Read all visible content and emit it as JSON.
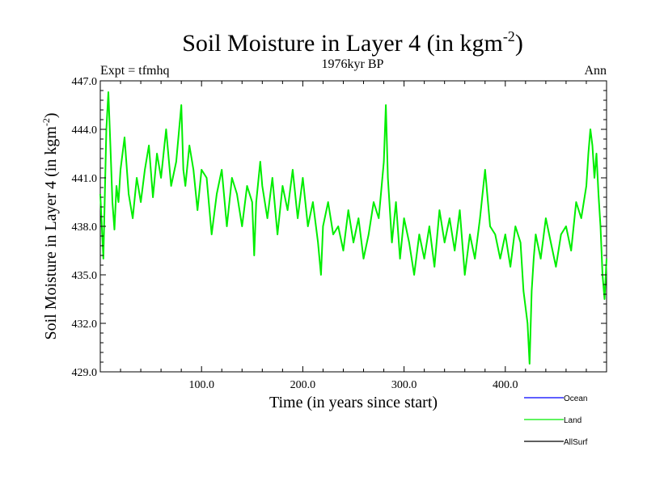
{
  "chart_data": {
    "type": "line",
    "title": "Soil Moisture in Layer 4 (in kgm",
    "title_superscript": "-2",
    "title_suffix": ")",
    "subtitle": "1976kyr BP",
    "left_label": "Expt = tfmhq",
    "right_label": "Ann",
    "xlabel": "Time (in years since start)",
    "ylabel": "Soil Moisture in Layer 4 (in kgm",
    "ylabel_superscript": "-2",
    "ylabel_suffix": ")",
    "xlim": [
      0,
      500
    ],
    "ylim": [
      429,
      447
    ],
    "x_ticks": [
      100,
      200,
      300,
      400
    ],
    "x_tick_labels": [
      "100.0",
      "200.0",
      "300.0",
      "400.0"
    ],
    "y_ticks": [
      429,
      432,
      435,
      438,
      441,
      444,
      447
    ],
    "y_tick_labels": [
      "429.0",
      "432.0",
      "435.0",
      "438.0",
      "441.0",
      "444.0",
      "447.0"
    ],
    "legend": [
      {
        "name": "Ocean",
        "color": "#0000ff"
      },
      {
        "name": "Land",
        "color": "#00ee00"
      },
      {
        "name": "AllSurf",
        "color": "#000000"
      }
    ],
    "series": [
      {
        "name": "Land",
        "color": "#00ee00",
        "x": [
          0,
          3,
          6,
          8,
          10,
          12,
          14,
          16,
          18,
          20,
          24,
          28,
          32,
          36,
          40,
          44,
          48,
          52,
          56,
          60,
          65,
          70,
          75,
          80,
          82,
          84,
          88,
          92,
          96,
          100,
          105,
          110,
          115,
          120,
          125,
          130,
          135,
          140,
          145,
          150,
          152,
          154,
          158,
          160,
          165,
          170,
          175,
          180,
          185,
          190,
          195,
          200,
          205,
          210,
          215,
          218,
          220,
          225,
          230,
          235,
          240,
          245,
          250,
          255,
          260,
          265,
          270,
          275,
          280,
          282,
          284,
          288,
          292,
          296,
          300,
          305,
          310,
          315,
          320,
          325,
          330,
          335,
          340,
          345,
          350,
          355,
          360,
          365,
          370,
          375,
          380,
          385,
          390,
          395,
          400,
          405,
          410,
          415,
          418,
          420,
          422,
          424,
          426,
          428,
          430,
          435,
          440,
          445,
          450,
          455,
          460,
          465,
          470,
          475,
          480,
          482,
          484,
          486,
          488,
          490,
          492,
          494,
          496,
          498,
          500
        ],
        "y": [
          440.0,
          436.0,
          444.0,
          446.3,
          443.0,
          439.5,
          437.8,
          440.5,
          439.5,
          441.5,
          443.5,
          440.0,
          438.5,
          441.0,
          439.5,
          441.5,
          443.0,
          439.8,
          442.5,
          441.0,
          444.0,
          440.5,
          442.0,
          445.5,
          441.5,
          440.5,
          443.0,
          441.5,
          439.0,
          441.5,
          441.0,
          437.5,
          440.0,
          441.5,
          438.0,
          441.0,
          440.0,
          438.0,
          440.5,
          439.5,
          436.2,
          439.5,
          442.0,
          440.5,
          438.5,
          441.0,
          437.5,
          440.5,
          439.0,
          441.5,
          438.5,
          441.0,
          438.0,
          439.5,
          437.0,
          435.0,
          438.0,
          439.5,
          437.5,
          438.0,
          436.5,
          439.0,
          437.0,
          438.5,
          436.0,
          437.5,
          439.5,
          438.5,
          442.0,
          445.5,
          441.0,
          437.0,
          439.5,
          436.0,
          438.5,
          437.0,
          435.0,
          437.5,
          436.0,
          438.0,
          435.5,
          439.0,
          437.0,
          438.5,
          436.5,
          439.0,
          435.0,
          437.5,
          436.0,
          438.5,
          441.5,
          438.0,
          437.5,
          436.0,
          437.5,
          435.5,
          438.0,
          437.0,
          434.0,
          433.0,
          432.0,
          429.5,
          434.0,
          436.0,
          437.5,
          436.0,
          438.5,
          437.0,
          435.5,
          437.5,
          438.0,
          436.5,
          439.5,
          438.5,
          440.5,
          442.5,
          444.0,
          443.0,
          441.0,
          442.5,
          440.0,
          438.0,
          435.0,
          433.5,
          436.0
        ]
      }
    ]
  }
}
